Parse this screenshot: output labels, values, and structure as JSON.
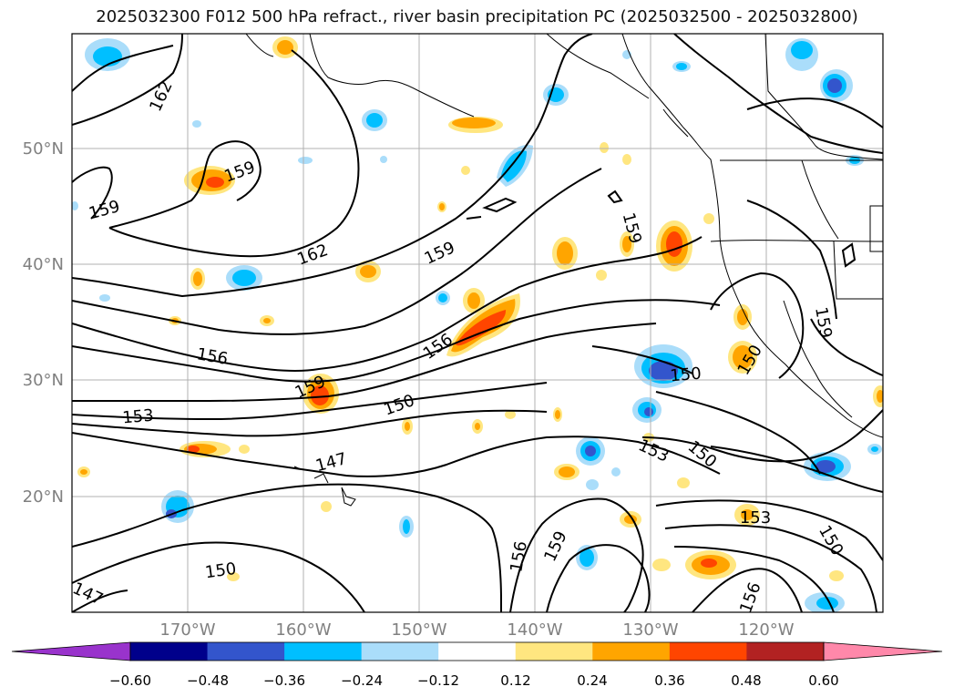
{
  "title": "2025032300 F012 500 hPa refract., river basin precipitation PC (2025032500 - 2025032800)",
  "axes": {
    "lat_labels": [
      "50°N",
      "40°N",
      "30°N",
      "20°N"
    ],
    "lon_labels": [
      "170°W",
      "160°W",
      "150°W",
      "140°W",
      "130°W",
      "120°W"
    ],
    "tick_color": "#808080"
  },
  "contour_labels": [
    "162",
    "159",
    "162",
    "159",
    "159",
    "159",
    "156",
    "156",
    "159",
    "153",
    "150",
    "147",
    "150",
    "147",
    "150",
    "150",
    "153",
    "150",
    "159",
    "156",
    "153",
    "150",
    "156",
    "159"
  ],
  "colorbar": {
    "ticks": [
      "−0.60",
      "−0.48",
      "−0.36",
      "−0.24",
      "−0.12",
      "0.12",
      "0.24",
      "0.36",
      "0.48",
      "0.60"
    ],
    "colors": [
      "#9933cc",
      "#00008b",
      "#3355cc",
      "#00bfff",
      "#aaddfa",
      "#ffffff",
      "#ffe680",
      "#ffa500",
      "#ff4500",
      "#b22222",
      "#ff88aa"
    ]
  }
}
